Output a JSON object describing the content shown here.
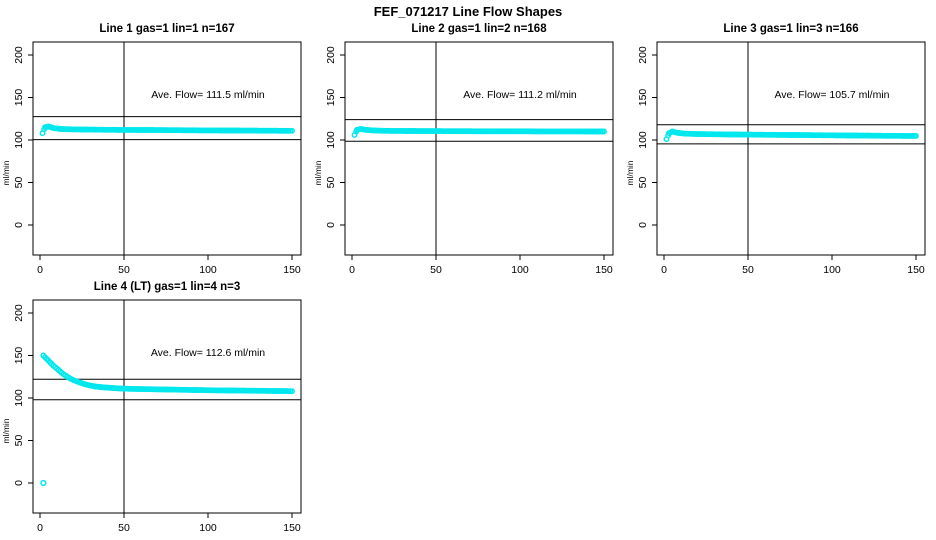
{
  "page_title": "FEF_071217  Line Flow Shapes",
  "colors": {
    "data_point": "#00E8EE",
    "axis": "#000000",
    "background": "#ffffff",
    "text": "#000000"
  },
  "axes": {
    "x_ticks": [
      0,
      50,
      100,
      150
    ],
    "y_ticks": [
      0,
      50,
      100,
      150,
      200
    ],
    "y_axis_label": "ml/min",
    "xlim": [
      -4,
      155.5
    ],
    "ylim": [
      -35,
      215
    ]
  },
  "chart_data": [
    {
      "type": "scatter",
      "title": "Line 1 gas=1 lin=1 n=167",
      "annotation": "Ave. Flow=  111.5  ml/min",
      "avg_flow_ml_min": 111.5,
      "n": 167,
      "vline_x": 50,
      "hline_upper": 127.5,
      "hline_lower": 100.5,
      "points": [
        [
          1.5,
          108
        ],
        [
          3,
          115
        ],
        [
          5,
          116
        ],
        [
          8,
          114
        ],
        [
          12,
          113
        ],
        [
          20,
          112.5
        ],
        [
          40,
          112
        ],
        [
          60,
          111.8
        ],
        [
          90,
          111.4
        ],
        [
          120,
          111.1
        ],
        [
          150,
          110.8
        ]
      ],
      "outliers": []
    },
    {
      "type": "scatter",
      "title": "Line 2 gas=1 lin=2 n=168",
      "annotation": "Ave. Flow=  111.2  ml/min",
      "avg_flow_ml_min": 111.2,
      "n": 168,
      "vline_x": 50,
      "hline_upper": 124,
      "hline_lower": 98.5,
      "points": [
        [
          1.5,
          106
        ],
        [
          3,
          112
        ],
        [
          5,
          113
        ],
        [
          8,
          112
        ],
        [
          12,
          111.3
        ],
        [
          20,
          110.8
        ],
        [
          40,
          110.5
        ],
        [
          70,
          110.3
        ],
        [
          100,
          110.2
        ],
        [
          130,
          110.1
        ],
        [
          150,
          110
        ]
      ],
      "outliers": []
    },
    {
      "type": "scatter",
      "title": "Line 3 gas=1 lin=3 n=166",
      "annotation": "Ave. Flow=  105.7  ml/min",
      "avg_flow_ml_min": 105.7,
      "n": 166,
      "vline_x": 50,
      "hline_upper": 118,
      "hline_lower": 95.5,
      "points": [
        [
          1.5,
          101
        ],
        [
          3,
          108
        ],
        [
          5,
          110
        ],
        [
          8,
          108.5
        ],
        [
          12,
          107.5
        ],
        [
          20,
          107
        ],
        [
          40,
          106.5
        ],
        [
          70,
          106
        ],
        [
          100,
          105.5
        ],
        [
          130,
          105
        ],
        [
          150,
          104.8
        ]
      ],
      "outliers": []
    },
    {
      "type": "scatter",
      "title": "Line 4 (LT) gas=1 lin=4 n=3",
      "annotation": "Ave. Flow=  112.6  ml/min",
      "avg_flow_ml_min": 112.6,
      "n": 3,
      "vline_x": 50,
      "hline_upper": 122,
      "hline_lower": 98,
      "points": [
        [
          2,
          150
        ],
        [
          5,
          144
        ],
        [
          8,
          138
        ],
        [
          11,
          133
        ],
        [
          14,
          128
        ],
        [
          17,
          124
        ],
        [
          20,
          121
        ],
        [
          24,
          118
        ],
        [
          28,
          115.5
        ],
        [
          33,
          113.5
        ],
        [
          38,
          112.5
        ],
        [
          45,
          111.5
        ],
        [
          50,
          111
        ],
        [
          60,
          110.5
        ],
        [
          75,
          110
        ],
        [
          90,
          109.5
        ],
        [
          105,
          109
        ],
        [
          120,
          108.7
        ],
        [
          135,
          108.4
        ],
        [
          150,
          108
        ]
      ],
      "outliers": [
        [
          2,
          0
        ]
      ]
    }
  ]
}
